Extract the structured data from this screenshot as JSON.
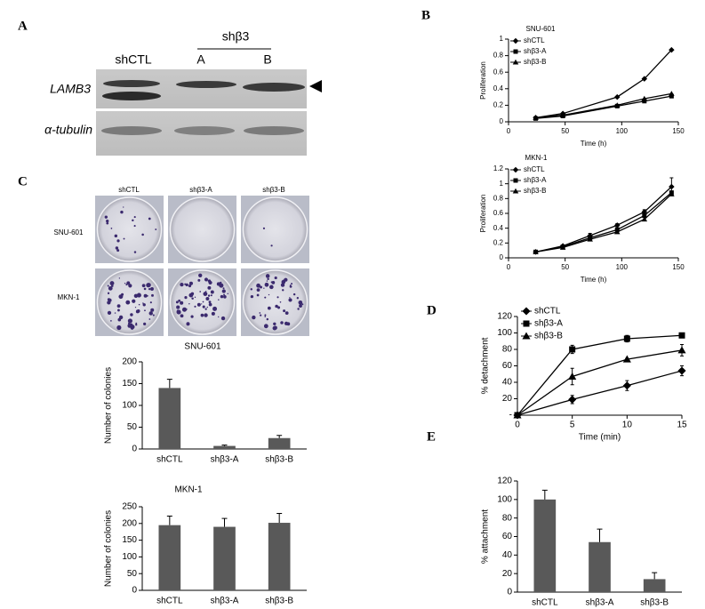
{
  "panel_labels": [
    "A",
    "B",
    "C",
    "D",
    "E"
  ],
  "blot": {
    "lanes": [
      "shCTL",
      "A",
      "B"
    ],
    "group": "shβ3",
    "rows": [
      "LAMB3",
      "α-tubulin"
    ]
  },
  "plates": {
    "columns": [
      "shCTL",
      "shβ3-A",
      "shβ3-B"
    ],
    "rows": [
      "SNU-601",
      "MKN-1"
    ]
  },
  "chart_data": [
    {
      "type": "line",
      "title": "SNU-601",
      "x_label": "Time (h)",
      "y_label": "Proliferation",
      "x": [
        24,
        48,
        96,
        120,
        144
      ],
      "xlim": [
        0,
        150
      ],
      "xticks": [
        0,
        50,
        100,
        150
      ],
      "ylim": [
        0,
        1
      ],
      "yticks": [
        0,
        0.2,
        0.4,
        0.6,
        0.8,
        1
      ],
      "legend": "upper left",
      "series": [
        {
          "name": "shCTL",
          "color": "#000000",
          "marker": "diamond",
          "values": [
            0.05,
            0.1,
            0.3,
            0.52,
            0.87
          ]
        },
        {
          "name": "shβ3-A",
          "color": "#000000",
          "marker": "square",
          "values": [
            0.04,
            0.07,
            0.19,
            0.25,
            0.31
          ]
        },
        {
          "name": "shβ3-B",
          "color": "#000000",
          "marker": "triangle",
          "values": [
            0.05,
            0.08,
            0.2,
            0.28,
            0.34
          ]
        }
      ]
    },
    {
      "type": "line",
      "title": "MKN-1",
      "x_label": "Time (h)",
      "y_label": "Proliferation",
      "x": [
        24,
        48,
        72,
        96,
        120,
        144
      ],
      "xlim": [
        0,
        150
      ],
      "xticks": [
        0,
        50,
        100,
        150
      ],
      "ylim": [
        0,
        1.2
      ],
      "yticks": [
        0,
        0.2,
        0.4,
        0.6,
        0.8,
        1,
        1.2
      ],
      "legend": "upper left",
      "series": [
        {
          "name": "shCTL",
          "color": "#000000",
          "marker": "diamond",
          "values": [
            0.08,
            0.16,
            0.3,
            0.44,
            0.62,
            0.96
          ],
          "errors": [
            0.01,
            0.01,
            0.03,
            0.02,
            0.03,
            0.12
          ]
        },
        {
          "name": "shβ3-A",
          "color": "#000000",
          "marker": "square",
          "values": [
            0.08,
            0.15,
            0.27,
            0.38,
            0.57,
            0.88
          ]
        },
        {
          "name": "shβ3-B",
          "color": "#000000",
          "marker": "triangle",
          "values": [
            0.08,
            0.14,
            0.25,
            0.35,
            0.52,
            0.86
          ]
        }
      ]
    },
    {
      "type": "bar",
      "title": "SNU-601",
      "y_label": "Number of colonies",
      "categories": [
        "shCTL",
        "shβ3-A",
        "shβ3-B"
      ],
      "values": [
        140,
        7,
        25
      ],
      "errors": [
        20,
        2,
        6
      ],
      "color": "#595959",
      "ylim": [
        0,
        200
      ],
      "yticks": [
        0,
        50,
        100,
        150,
        200
      ]
    },
    {
      "type": "bar",
      "title": "MKN-1",
      "y_label": "Number of colonies",
      "categories": [
        "shCTL",
        "shβ3-A",
        "shβ3-B"
      ],
      "values": [
        195,
        190,
        202
      ],
      "errors": [
        27,
        25,
        28
      ],
      "color": "#595959",
      "ylim": [
        0,
        250
      ],
      "yticks": [
        0,
        50,
        100,
        150,
        200,
        250
      ]
    },
    {
      "type": "line",
      "x_label": "Time (min)",
      "y_label": "% detachment",
      "x": [
        0,
        5,
        10,
        15
      ],
      "xlim": [
        0,
        15
      ],
      "xticks": [
        0,
        5,
        10,
        15
      ],
      "ylim": [
        0,
        120
      ],
      "yticks": [
        {
          "value": 0,
          "label": "-"
        },
        20,
        40,
        60,
        80,
        100,
        120
      ],
      "legend": "upper left",
      "series": [
        {
          "name": "shCTL",
          "color": "#000000",
          "marker": "diamond",
          "values": [
            0,
            19,
            36,
            54
          ],
          "errors": [
            0,
            5,
            6,
            6
          ]
        },
        {
          "name": "shβ3-A",
          "color": "#000000",
          "marker": "square",
          "values": [
            0,
            80,
            93,
            97
          ],
          "errors": [
            0,
            5,
            4,
            0
          ]
        },
        {
          "name": "shβ3-B",
          "color": "#000000",
          "marker": "triangle",
          "values": [
            0,
            47,
            68,
            79
          ],
          "errors": [
            0,
            10,
            1,
            7
          ]
        }
      ]
    },
    {
      "type": "bar",
      "y_label": "% attachment",
      "categories": [
        "shCTL",
        "shβ3-A",
        "shβ3-B"
      ],
      "values": [
        100,
        54,
        14
      ],
      "errors": [
        10,
        14,
        7
      ],
      "color": "#595959",
      "ylim": [
        0,
        120
      ],
      "yticks": [
        0,
        20,
        40,
        60,
        80,
        100,
        120
      ]
    }
  ]
}
